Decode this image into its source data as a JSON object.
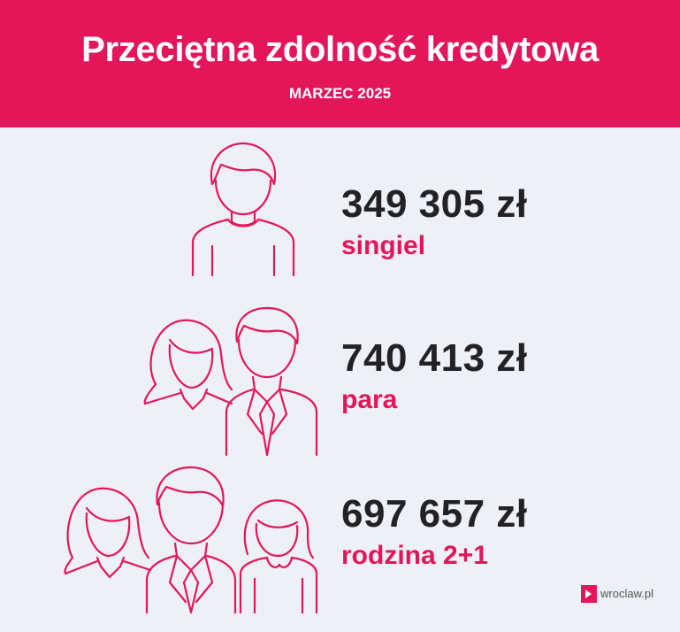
{
  "header": {
    "title": "Przeciętna zdolność kredytowa",
    "subtitle": "MARZEC 2025"
  },
  "rows": [
    {
      "amount": "349 305 zł",
      "label": "singiel",
      "icon": "single-person-icon"
    },
    {
      "amount": "740 413 zł",
      "label": "para",
      "icon": "couple-icon"
    },
    {
      "amount": "697 657 zł",
      "label": "rodzina 2+1",
      "icon": "family-icon"
    }
  ],
  "logo": {
    "text": "wroclaw.pl"
  },
  "colors": {
    "accent": "#e4165a",
    "background": "#edf0f6",
    "text": "#222226"
  }
}
